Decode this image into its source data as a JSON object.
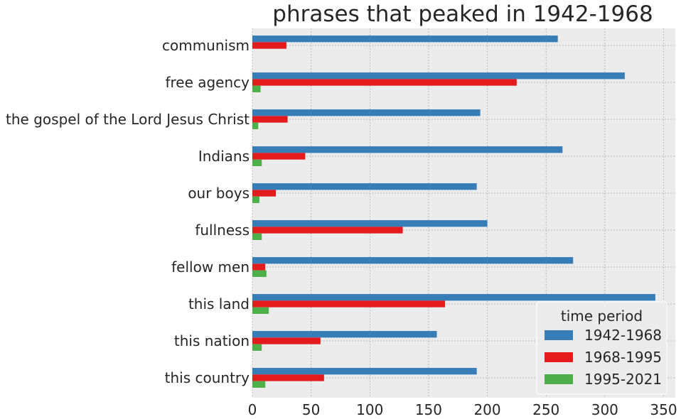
{
  "chart_data": {
    "type": "bar",
    "orientation": "horizontal",
    "title": "phrases that peaked in 1942-1968",
    "xlabel": "",
    "ylabel": "",
    "xlim": [
      0,
      360
    ],
    "xticks": [
      "0",
      "50",
      "100",
      "150",
      "200",
      "250",
      "300",
      "350"
    ],
    "categories": [
      "communism",
      "free agency",
      "the gospel of the Lord Jesus Christ",
      "Indians",
      "our boys",
      "fullness",
      "fellow men",
      "this land",
      "this nation",
      "this country"
    ],
    "series": [
      {
        "name": "1942-1968",
        "color": "#377eb8",
        "values": [
          260,
          317,
          194,
          264,
          191,
          200,
          273,
          343,
          157,
          191
        ]
      },
      {
        "name": "1968-1995",
        "color": "#e41a1c",
        "values": [
          29,
          225,
          30,
          45,
          20,
          128,
          11,
          164,
          58,
          61
        ]
      },
      {
        "name": "1995-2021",
        "color": "#4daf4a",
        "values": [
          0,
          7,
          5,
          8,
          6,
          8,
          12,
          14,
          8,
          11
        ]
      }
    ],
    "legend": {
      "title": "time period",
      "position": "bottom-right"
    },
    "grid": true
  }
}
